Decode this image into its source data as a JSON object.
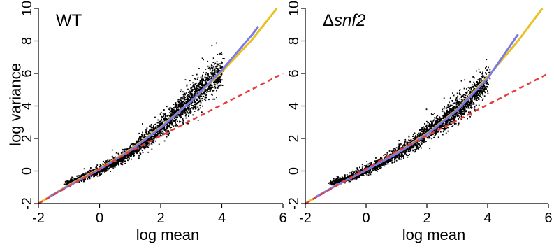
{
  "chart_data": [
    {
      "type": "scatter",
      "title": "WT",
      "title_prefix": "",
      "title_italic": "",
      "xlabel": "log mean",
      "ylabel": "log variance",
      "xlim": [
        -2,
        6
      ],
      "ylim": [
        -2,
        10
      ],
      "xticks": [
        -2,
        0,
        2,
        4,
        6
      ],
      "yticks": [
        -2,
        0,
        2,
        4,
        6,
        8,
        10
      ],
      "grid": false,
      "legend": "none",
      "points_color": "#000000",
      "cloud_spine": {
        "x": [
          -1.1,
          -0.6,
          0,
          0.5,
          1,
          1.5,
          2,
          2.5,
          3,
          3.5,
          4
        ],
        "y": [
          -0.8,
          -0.45,
          0.05,
          0.55,
          1.15,
          1.85,
          2.65,
          3.5,
          4.4,
          5.3,
          6.1
        ],
        "spread": [
          0.08,
          0.1,
          0.12,
          0.15,
          0.18,
          0.25,
          0.32,
          0.4,
          0.45,
          0.5,
          0.5
        ]
      },
      "series": [
        {
          "style": "solid",
          "color": "#e8c020",
          "x": [
            -2,
            -1,
            0,
            1,
            2,
            3,
            4,
            5,
            5.8
          ],
          "y": [
            -2,
            -0.85,
            0.15,
            1.3,
            2.7,
            4.3,
            6.1,
            8.1,
            10
          ]
        },
        {
          "style": "solid",
          "color": "#7b7be8",
          "x": [
            -1.7,
            -1,
            0,
            1,
            2,
            3,
            4,
            5,
            5.2
          ],
          "y": [
            -1.65,
            -0.9,
            0.1,
            1.25,
            2.65,
            4.3,
            6.2,
            8.4,
            8.9
          ]
        },
        {
          "style": "dashed",
          "color": "#e83a3a",
          "x": [
            -2,
            1,
            6
          ],
          "y": [
            -2,
            1.2,
            6
          ]
        }
      ]
    },
    {
      "type": "scatter",
      "title": "Δsnf2",
      "title_prefix": "Δ",
      "title_italic": "snf2",
      "xlabel": "log mean",
      "ylabel": "",
      "xlim": [
        -2,
        6
      ],
      "ylim": [
        -2,
        10
      ],
      "xticks": [
        -2,
        0,
        2,
        4,
        6
      ],
      "yticks": [
        -2,
        0,
        2,
        4,
        6,
        8,
        10
      ],
      "grid": false,
      "legend": "none",
      "points_color": "#000000",
      "cloud_spine": {
        "x": [
          -1.2,
          -0.6,
          0,
          0.5,
          1,
          1.5,
          2,
          2.5,
          3,
          3.5,
          4
        ],
        "y": [
          -0.8,
          -0.45,
          0.05,
          0.5,
          1.05,
          1.6,
          2.35,
          3.0,
          3.8,
          4.6,
          5.6
        ],
        "spread": [
          0.08,
          0.1,
          0.12,
          0.14,
          0.17,
          0.22,
          0.28,
          0.33,
          0.38,
          0.42,
          0.45
        ]
      },
      "series": [
        {
          "style": "solid",
          "color": "#e8c020",
          "x": [
            -2,
            -1,
            0,
            1,
            2,
            3,
            4,
            5,
            5.8
          ],
          "y": [
            -2,
            -0.9,
            0.05,
            1.1,
            2.3,
            3.8,
            5.8,
            8.0,
            10
          ]
        },
        {
          "style": "solid",
          "color": "#7b7be8",
          "x": [
            -1.7,
            -1,
            0,
            1,
            2,
            3,
            4,
            5
          ],
          "y": [
            -1.65,
            -0.9,
            0.05,
            1.05,
            2.25,
            3.75,
            5.7,
            8.4
          ]
        },
        {
          "style": "dashed",
          "color": "#e83a3a",
          "x": [
            -2,
            1,
            6
          ],
          "y": [
            -2,
            1.2,
            6
          ]
        }
      ]
    }
  ]
}
